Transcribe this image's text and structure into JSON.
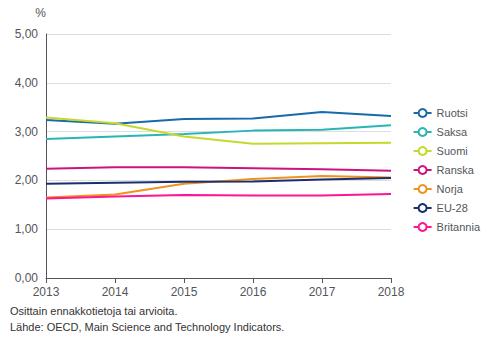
{
  "chart_data": {
    "type": "line",
    "x": [
      2013,
      2014,
      2015,
      2016,
      2017,
      2018
    ],
    "series": [
      {
        "name": "Ruotsi",
        "color": "#1a6aab",
        "values": [
          3.24,
          3.16,
          3.26,
          3.27,
          3.4,
          3.32
        ]
      },
      {
        "name": "Saksa",
        "color": "#2ab5b5",
        "values": [
          2.85,
          2.9,
          2.95,
          3.02,
          3.04,
          3.13
        ]
      },
      {
        "name": "Suomi",
        "color": "#c5d92d",
        "values": [
          3.29,
          3.17,
          2.9,
          2.75,
          2.76,
          2.77
        ]
      },
      {
        "name": "Ranska",
        "color": "#cc1480",
        "values": [
          2.24,
          2.27,
          2.27,
          2.25,
          2.23,
          2.2
        ]
      },
      {
        "name": "Norja",
        "color": "#f0921e",
        "values": [
          1.65,
          1.71,
          1.93,
          2.03,
          2.09,
          2.06
        ]
      },
      {
        "name": "EU-28",
        "color": "#1a2f6e",
        "values": [
          1.93,
          1.95,
          1.97,
          1.98,
          2.02,
          2.05
        ]
      },
      {
        "name": "Britannia",
        "color": "#ff1493",
        "values": [
          1.63,
          1.67,
          1.7,
          1.69,
          1.69,
          1.72
        ]
      }
    ],
    "xlim": [
      2013,
      2018
    ],
    "xticks": [
      2013,
      2014,
      2015,
      2016,
      2017,
      2018
    ],
    "ylim": [
      0.0,
      5.0
    ],
    "yticks": [
      {
        "value": 0.0,
        "label": "0,00"
      },
      {
        "value": 1.0,
        "label": "1,00"
      },
      {
        "value": 2.0,
        "label": "2,00"
      },
      {
        "value": 3.0,
        "label": "3,00"
      },
      {
        "value": 4.0,
        "label": "4,00"
      },
      {
        "value": 5.0,
        "label": "5,00"
      }
    ],
    "ylabel": "%",
    "annotations": [
      "Osittain ennakkotietoja tai arvioita.",
      "Lähde: OECD, Main Science and Technology Indicators."
    ],
    "grid": true,
    "legend": "right"
  }
}
